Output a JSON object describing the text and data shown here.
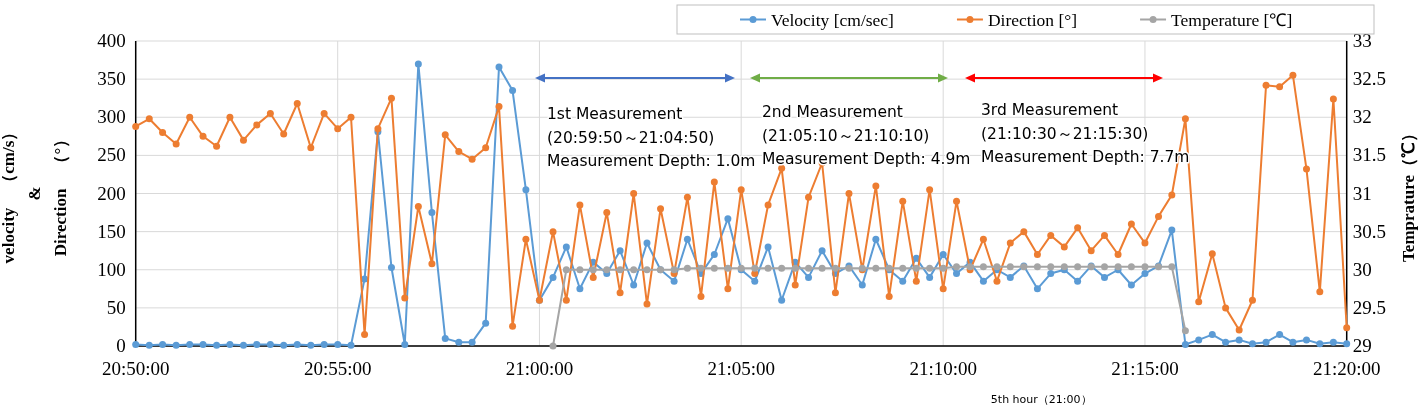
{
  "chart_data": {
    "type": "line",
    "x": [
      20.8333,
      20.8389,
      20.8444,
      20.85,
      20.8556,
      20.8611,
      20.8667,
      20.8722,
      20.8778,
      20.8833,
      20.8889,
      20.8944,
      20.9,
      20.9056,
      20.9111,
      20.9167,
      20.9222,
      20.9278,
      20.9333,
      20.9389,
      20.9444,
      20.95,
      20.9556,
      20.9611,
      20.9667,
      20.9722,
      20.9778,
      20.9833,
      20.9889,
      20.9944,
      21.0,
      21.0056,
      21.0111,
      21.0167,
      21.0222,
      21.0278,
      21.0333,
      21.0389,
      21.0444,
      21.05,
      21.0556,
      21.0611,
      21.0667,
      21.0722,
      21.0778,
      21.0833,
      21.0889,
      21.0944,
      21.1,
      21.1056,
      21.1111,
      21.1167,
      21.1222,
      21.1278,
      21.1333,
      21.1389,
      21.1444,
      21.15,
      21.1556,
      21.1611,
      21.1667,
      21.1722,
      21.1778,
      21.1833,
      21.1889,
      21.1944,
      21.2,
      21.2056,
      21.2111,
      21.2167,
      21.2222,
      21.2278,
      21.2333,
      21.2389,
      21.2444,
      21.25,
      21.2556,
      21.2611,
      21.2667,
      21.2722,
      21.2778,
      21.2833,
      21.2889,
      21.2944,
      21.3,
      21.3056,
      21.3111,
      21.3167,
      21.3222,
      21.3278,
      21.3333
    ],
    "series": [
      {
        "name": "Velocity [cm/sec]",
        "color": "#5b9bd5",
        "values": [
          2,
          1,
          2,
          1,
          2,
          2,
          1,
          2,
          1,
          2,
          2,
          1,
          2,
          1,
          2,
          2,
          1,
          88,
          281,
          103,
          2,
          370,
          175,
          10,
          5,
          5,
          30,
          366,
          335,
          205,
          60,
          90,
          130,
          75,
          110,
          95,
          125,
          80,
          135,
          100,
          85,
          140,
          95,
          120,
          167,
          100,
          85,
          130,
          60,
          110,
          90,
          125,
          95,
          105,
          80,
          140,
          100,
          85,
          115,
          90,
          120,
          95,
          110,
          85,
          100,
          90,
          105,
          75,
          95,
          100,
          85,
          105,
          90,
          100,
          80,
          95,
          105,
          152,
          2,
          8,
          15,
          5,
          8,
          3,
          5,
          15,
          5,
          8,
          3,
          5,
          3
        ]
      },
      {
        "name": "Direction [°]",
        "color": "#ed7d31",
        "values": [
          288,
          298,
          280,
          265,
          300,
          275,
          262,
          300,
          270,
          290,
          305,
          278,
          318,
          260,
          305,
          285,
          300,
          15,
          285,
          325,
          63,
          183,
          108,
          277,
          255,
          245,
          260,
          314,
          26,
          140,
          60,
          150,
          60,
          185,
          90,
          175,
          70,
          200,
          55,
          180,
          95,
          195,
          65,
          215,
          75,
          205,
          95,
          185,
          233,
          80,
          195,
          240,
          70,
          200,
          100,
          210,
          65,
          190,
          85,
          205,
          75,
          190,
          100,
          140,
          85,
          135,
          150,
          120,
          145,
          130,
          155,
          125,
          145,
          120,
          160,
          135,
          170,
          198,
          298,
          58,
          121,
          50,
          21,
          60,
          342,
          340,
          355,
          232,
          71,
          324,
          24
        ]
      },
      {
        "name": "Temperature [℃]",
        "color": "#a5a5a5",
        "axis": "y2",
        "values": [
          null,
          null,
          null,
          null,
          null,
          null,
          null,
          null,
          null,
          null,
          null,
          null,
          null,
          null,
          null,
          null,
          null,
          null,
          null,
          null,
          null,
          null,
          null,
          null,
          null,
          null,
          null,
          null,
          null,
          null,
          null,
          29,
          30,
          30,
          30,
          30,
          30,
          30,
          30,
          30,
          30,
          30.02,
          30.02,
          30.02,
          30.02,
          30.02,
          30.02,
          30.02,
          30.02,
          30.02,
          30.02,
          30.02,
          30.02,
          30.02,
          30.02,
          30.02,
          30.02,
          30.02,
          30.02,
          30.02,
          30.02,
          30.04,
          30.04,
          30.04,
          30.04,
          30.04,
          30.04,
          30.04,
          30.04,
          30.04,
          30.04,
          30.04,
          30.04,
          30.04,
          30.04,
          30.04,
          30.04,
          30.04,
          29.2,
          null,
          null,
          null,
          null,
          null,
          null,
          null,
          null,
          null,
          null,
          null,
          null
        ]
      }
    ],
    "xlim": [
      20.8333,
      21.3333
    ],
    "xticks": [
      {
        "value": 20.8333,
        "label": "20:50:00"
      },
      {
        "value": 20.9167,
        "label": "20:55:00"
      },
      {
        "value": 21.0,
        "label": "21:00:00"
      },
      {
        "value": 21.0833,
        "label": "21:05:00"
      },
      {
        "value": 21.1667,
        "label": "21:10:00"
      },
      {
        "value": 21.25,
        "label": "21:15:00"
      },
      {
        "value": 21.3333,
        "label": "21:20:00"
      }
    ],
    "ylim": [
      0,
      400
    ],
    "yticks": [
      0,
      50,
      100,
      150,
      200,
      250,
      300,
      350,
      400
    ],
    "y2lim": [
      29,
      33
    ],
    "y2ticks": [
      29,
      29.5,
      30,
      30.5,
      31,
      31.5,
      32,
      32.5,
      33
    ],
    "xlabel": "5th hour（21:00）",
    "ylabel": "velocity　（cm/s）\n&\nDirection　（°）",
    "y2label": "Temprature（℃）",
    "annotations": [
      "1st Measurement\n(20:59:50～21:04:50)\nMeasurement Depth: 1.0m",
      "2nd Measurement\n(21:05:10～21:10:10)\nMeasurement Depth: 4.9m",
      "3rd Measurement\n(21:10:30～21:15:30)\nMeasurement Depth: 7.7m"
    ],
    "grid": true,
    "legend": "top right",
    "marker": "circle",
    "line_style": "solid"
  }
}
